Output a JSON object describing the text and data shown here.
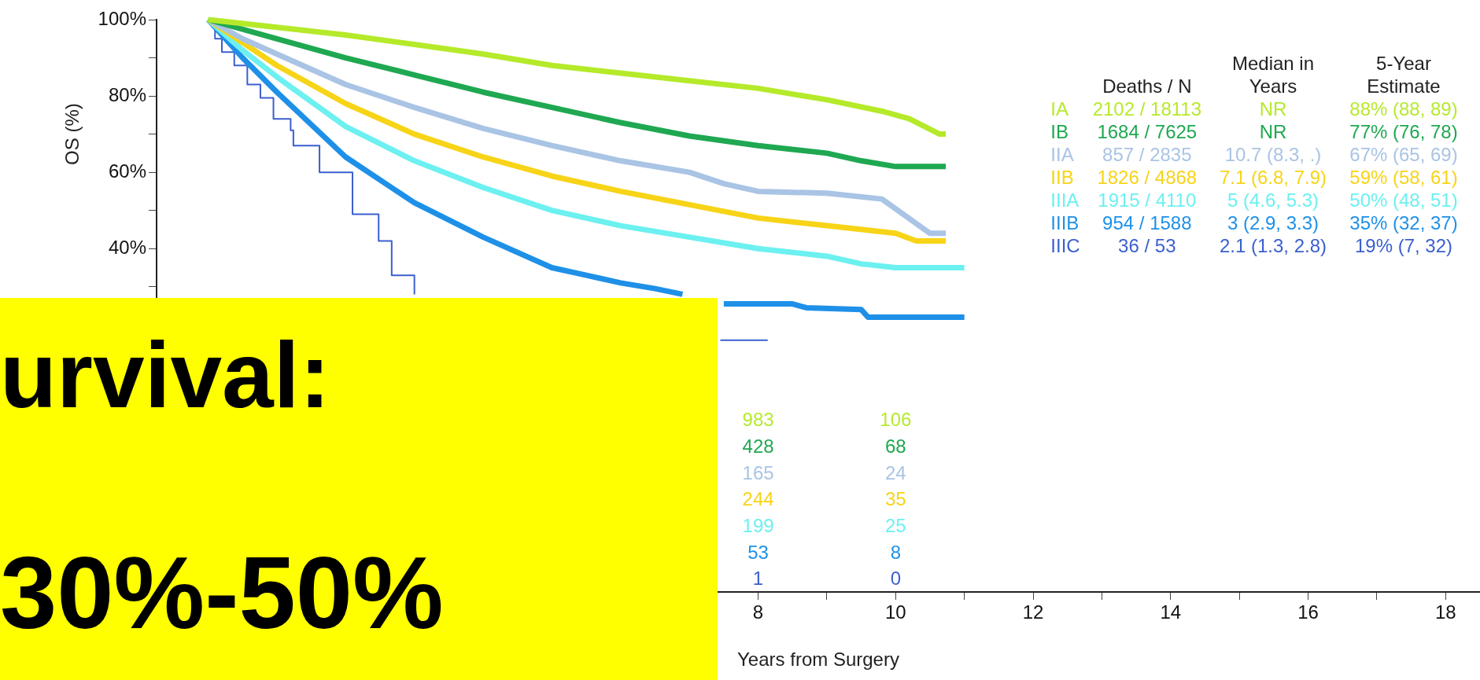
{
  "chart_data": {
    "type": "line",
    "title": "urvival:",
    "subtitle": "30%-50%",
    "ylabel": "OS (%)",
    "xlabel": "Years from Surgery",
    "marker": "none",
    "legend": "top right",
    "grid": false,
    "xlim": [
      -0.75,
      18.5
    ],
    "xticks": [
      8,
      {
        "value": 9,
        "label": null
      },
      10,
      {
        "value": 11,
        "label": null
      },
      12,
      {
        "value": 13,
        "label": null
      },
      14,
      {
        "value": 15,
        "label": null
      },
      16,
      {
        "value": 17,
        "label": null
      },
      18
    ],
    "ylim": [
      -50,
      100
    ],
    "yticks": [
      {
        "value": 100,
        "label": "100%"
      },
      {
        "value": 90,
        "label": null
      },
      {
        "value": 80,
        "label": "80%"
      },
      {
        "value": 70,
        "label": null
      },
      {
        "value": 60,
        "label": "60%"
      },
      {
        "value": 50,
        "label": null
      },
      {
        "value": 40,
        "label": "40%"
      },
      {
        "value": 30,
        "label": null
      }
    ],
    "series": [
      {
        "name": "IA",
        "color": "#b5ea2a",
        "x": [
          0,
          1,
          2,
          3,
          4,
          5,
          6,
          7,
          8,
          9,
          9.8,
          10.2,
          10.64,
          10.73
        ],
        "values": [
          100,
          98,
          96,
          93.5,
          91,
          88,
          86,
          84,
          82,
          79,
          76,
          74,
          70,
          70
        ]
      },
      {
        "name": "IB",
        "color": "#1fa851",
        "x": [
          0,
          1,
          2,
          3,
          4,
          5,
          6,
          7,
          8,
          9,
          9.5,
          10,
          10.73
        ],
        "values": [
          100,
          95,
          90,
          85.5,
          81,
          77,
          73,
          69.5,
          67,
          65,
          63,
          61.5,
          61.5
        ]
      },
      {
        "name": "IIA",
        "color": "#a9c4e4",
        "x": [
          0,
          0.5,
          1,
          2,
          3,
          4,
          5,
          6,
          7,
          7.5,
          8,
          9,
          9.8,
          10.5,
          10.73
        ],
        "values": [
          100,
          95,
          91,
          83,
          77,
          71.5,
          67,
          63,
          60,
          57,
          55,
          54.5,
          53,
          44,
          44
        ]
      },
      {
        "name": "IIB",
        "color": "#f7d417",
        "x": [
          0,
          0.5,
          1,
          2,
          3,
          4,
          5,
          6,
          7,
          8,
          9,
          10,
          10.3,
          10.73
        ],
        "values": [
          100,
          94,
          88,
          78,
          70,
          64,
          59,
          55,
          51.5,
          48,
          46,
          44,
          42,
          42
        ]
      },
      {
        "name": "IIIA",
        "color": "#6df0f0",
        "x": [
          0,
          0.5,
          1,
          2,
          3,
          4,
          5,
          6,
          7,
          8,
          9,
          9.5,
          10,
          11
        ],
        "values": [
          100,
          92,
          85,
          72,
          63,
          56,
          50,
          46,
          43,
          40,
          38,
          36,
          35,
          35
        ]
      },
      {
        "name": "IIIB",
        "color": "#1e90e8",
        "x": [
          0,
          0.5,
          1,
          2,
          3,
          4,
          5,
          5.5,
          6,
          6.5,
          6.9,
          7.2,
          7.5,
          8.5,
          8.7,
          9.5,
          9.6,
          11
        ],
        "values": [
          100,
          90,
          81,
          64,
          52,
          43,
          35,
          33,
          31,
          29.5,
          28,
          null,
          25.5,
          25.5,
          24.5,
          24,
          22,
          22
        ]
      },
      {
        "name": "IIIC",
        "type": "step",
        "color": "#3a5fd0",
        "x": [
          0,
          0.1,
          0.2,
          0.38,
          0.57,
          0.76,
          0.95,
          1.2,
          1.24,
          1.62,
          2.1,
          2.48,
          2.67,
          3.0,
          5,
          7.45,
          8.14
        ],
        "values": [
          100,
          95,
          91.5,
          88,
          83,
          79.5,
          74,
          71,
          67,
          60,
          49,
          42,
          33,
          28,
          null,
          16,
          16
        ]
      }
    ],
    "annotations": [
      "Deaths / N",
      "Median in Years",
      "5-Year Estimate",
      "2102 / 18113",
      "NR",
      "88% (88, 89)",
      "1684 / 7625",
      "NR",
      "77% (76, 78)",
      "857 / 2835",
      "10.7 (8.3, .)",
      "67% (65, 69)",
      "1826 / 4868",
      "7.1 (6.8, 7.9)",
      "59% (58, 61)",
      "1915 / 4110",
      "5 (4.6, 5.3)",
      "50% (48, 51)",
      "954 / 1588",
      "3 (2.9, 3.3)",
      "35% (32, 37)",
      "36 / 53",
      "2.1 (1.3, 2.8)",
      "19% (7, 32)",
      "983",
      "428",
      "165",
      "244",
      "199",
      "53",
      "1",
      "106",
      "68",
      "24",
      "35",
      "25",
      "8",
      "0"
    ]
  }
}
